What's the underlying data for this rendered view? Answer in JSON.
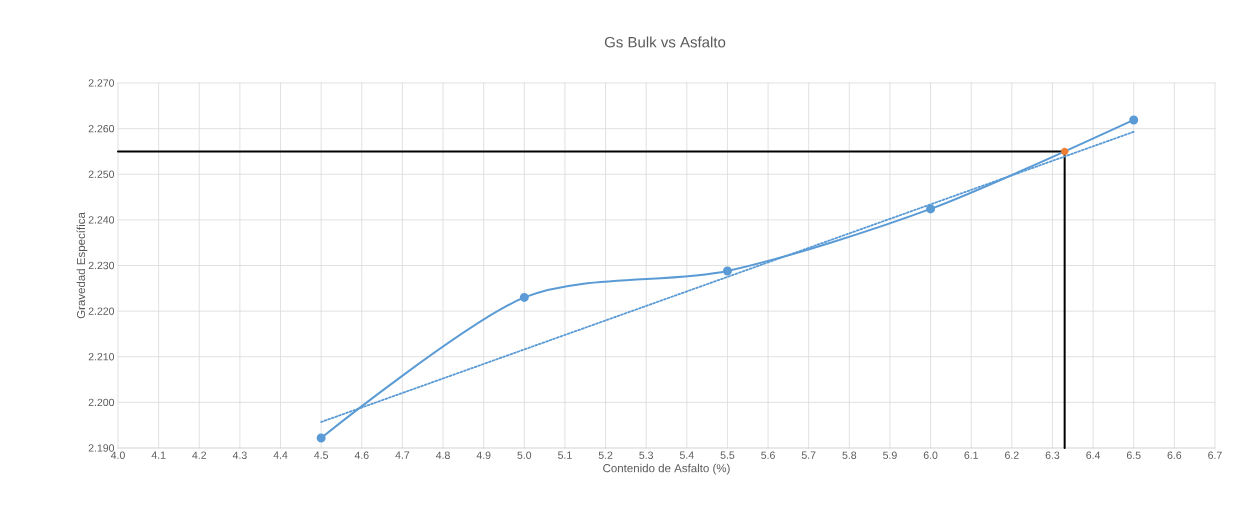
{
  "chart_data": {
    "type": "line",
    "title": "Gs Bulk vs Asfalto",
    "xlabel": "Contenido de Asfalto (%)",
    "ylabel": "Gravedad Específica",
    "xlim": [
      4.0,
      6.7
    ],
    "xticks": [
      {
        "value": 4.0,
        "label": "4.0"
      },
      {
        "value": 4.1,
        "label": "4.1"
      },
      {
        "value": 4.2,
        "label": "4.2"
      },
      {
        "value": 4.3,
        "label": "4.3"
      },
      {
        "value": 4.4,
        "label": "4.4"
      },
      {
        "value": 4.5,
        "label": "4.5"
      },
      {
        "value": 4.6,
        "label": "4.6"
      },
      {
        "value": 4.7,
        "label": "4.7"
      },
      {
        "value": 4.8,
        "label": "4.8"
      },
      {
        "value": 4.9,
        "label": "4.9"
      },
      {
        "value": 5.0,
        "label": "5.0"
      },
      {
        "value": 5.1,
        "label": "5.1"
      },
      {
        "value": 5.2,
        "label": "5.2"
      },
      {
        "value": 5.3,
        "label": "5.3"
      },
      {
        "value": 5.4,
        "label": "5.4"
      },
      {
        "value": 5.5,
        "label": "5.5"
      },
      {
        "value": 5.6,
        "label": "5.6"
      },
      {
        "value": 5.7,
        "label": "5.7"
      },
      {
        "value": 5.8,
        "label": "5.8"
      },
      {
        "value": 5.9,
        "label": "5.9"
      },
      {
        "value": 6.0,
        "label": "6.0"
      },
      {
        "value": 6.1,
        "label": "6.1"
      },
      {
        "value": 6.2,
        "label": "6.2"
      },
      {
        "value": 6.3,
        "label": "6.3"
      },
      {
        "value": 6.4,
        "label": "6.4"
      },
      {
        "value": 6.5,
        "label": "6.5"
      },
      {
        "value": 6.6,
        "label": "6.6"
      },
      {
        "value": 6.7,
        "label": "6.7"
      }
    ],
    "ylim": [
      2.19,
      2.27
    ],
    "yticks": [
      {
        "value": 2.19,
        "label": "2.190"
      },
      {
        "value": 2.2,
        "label": "2.200"
      },
      {
        "value": 2.21,
        "label": "2.210"
      },
      {
        "value": 2.22,
        "label": "2.220"
      },
      {
        "value": 2.23,
        "label": "2.230"
      },
      {
        "value": 2.24,
        "label": "2.240"
      },
      {
        "value": 2.25,
        "label": "2.250"
      },
      {
        "value": 2.26,
        "label": "2.260"
      },
      {
        "value": 2.27,
        "label": "2.270"
      }
    ],
    "grid": true,
    "series": [
      {
        "color": "#000000",
        "marker": "none",
        "line_style": "solid",
        "x": [
          4.0,
          6.33,
          6.33
        ],
        "values": [
          2.255,
          2.255,
          2.19
        ]
      },
      {
        "color": "#5b9bd5",
        "marker": "none",
        "line_style": "dotted",
        "x": [
          4.5,
          6.5
        ],
        "values": [
          2.1957,
          2.2593
        ]
      },
      {
        "color": "#5b9bd5",
        "marker": "circle",
        "line_style": "solid",
        "x": [
          4.5,
          5.0,
          5.5,
          6.0,
          6.5
        ],
        "values": [
          2.1922,
          2.223,
          2.2288,
          2.2424,
          2.2619
        ]
      },
      {
        "type": "scatter",
        "color": "#ed7d31",
        "marker": "circle",
        "x": [
          6.33
        ],
        "values": [
          2.255
        ]
      }
    ]
  }
}
